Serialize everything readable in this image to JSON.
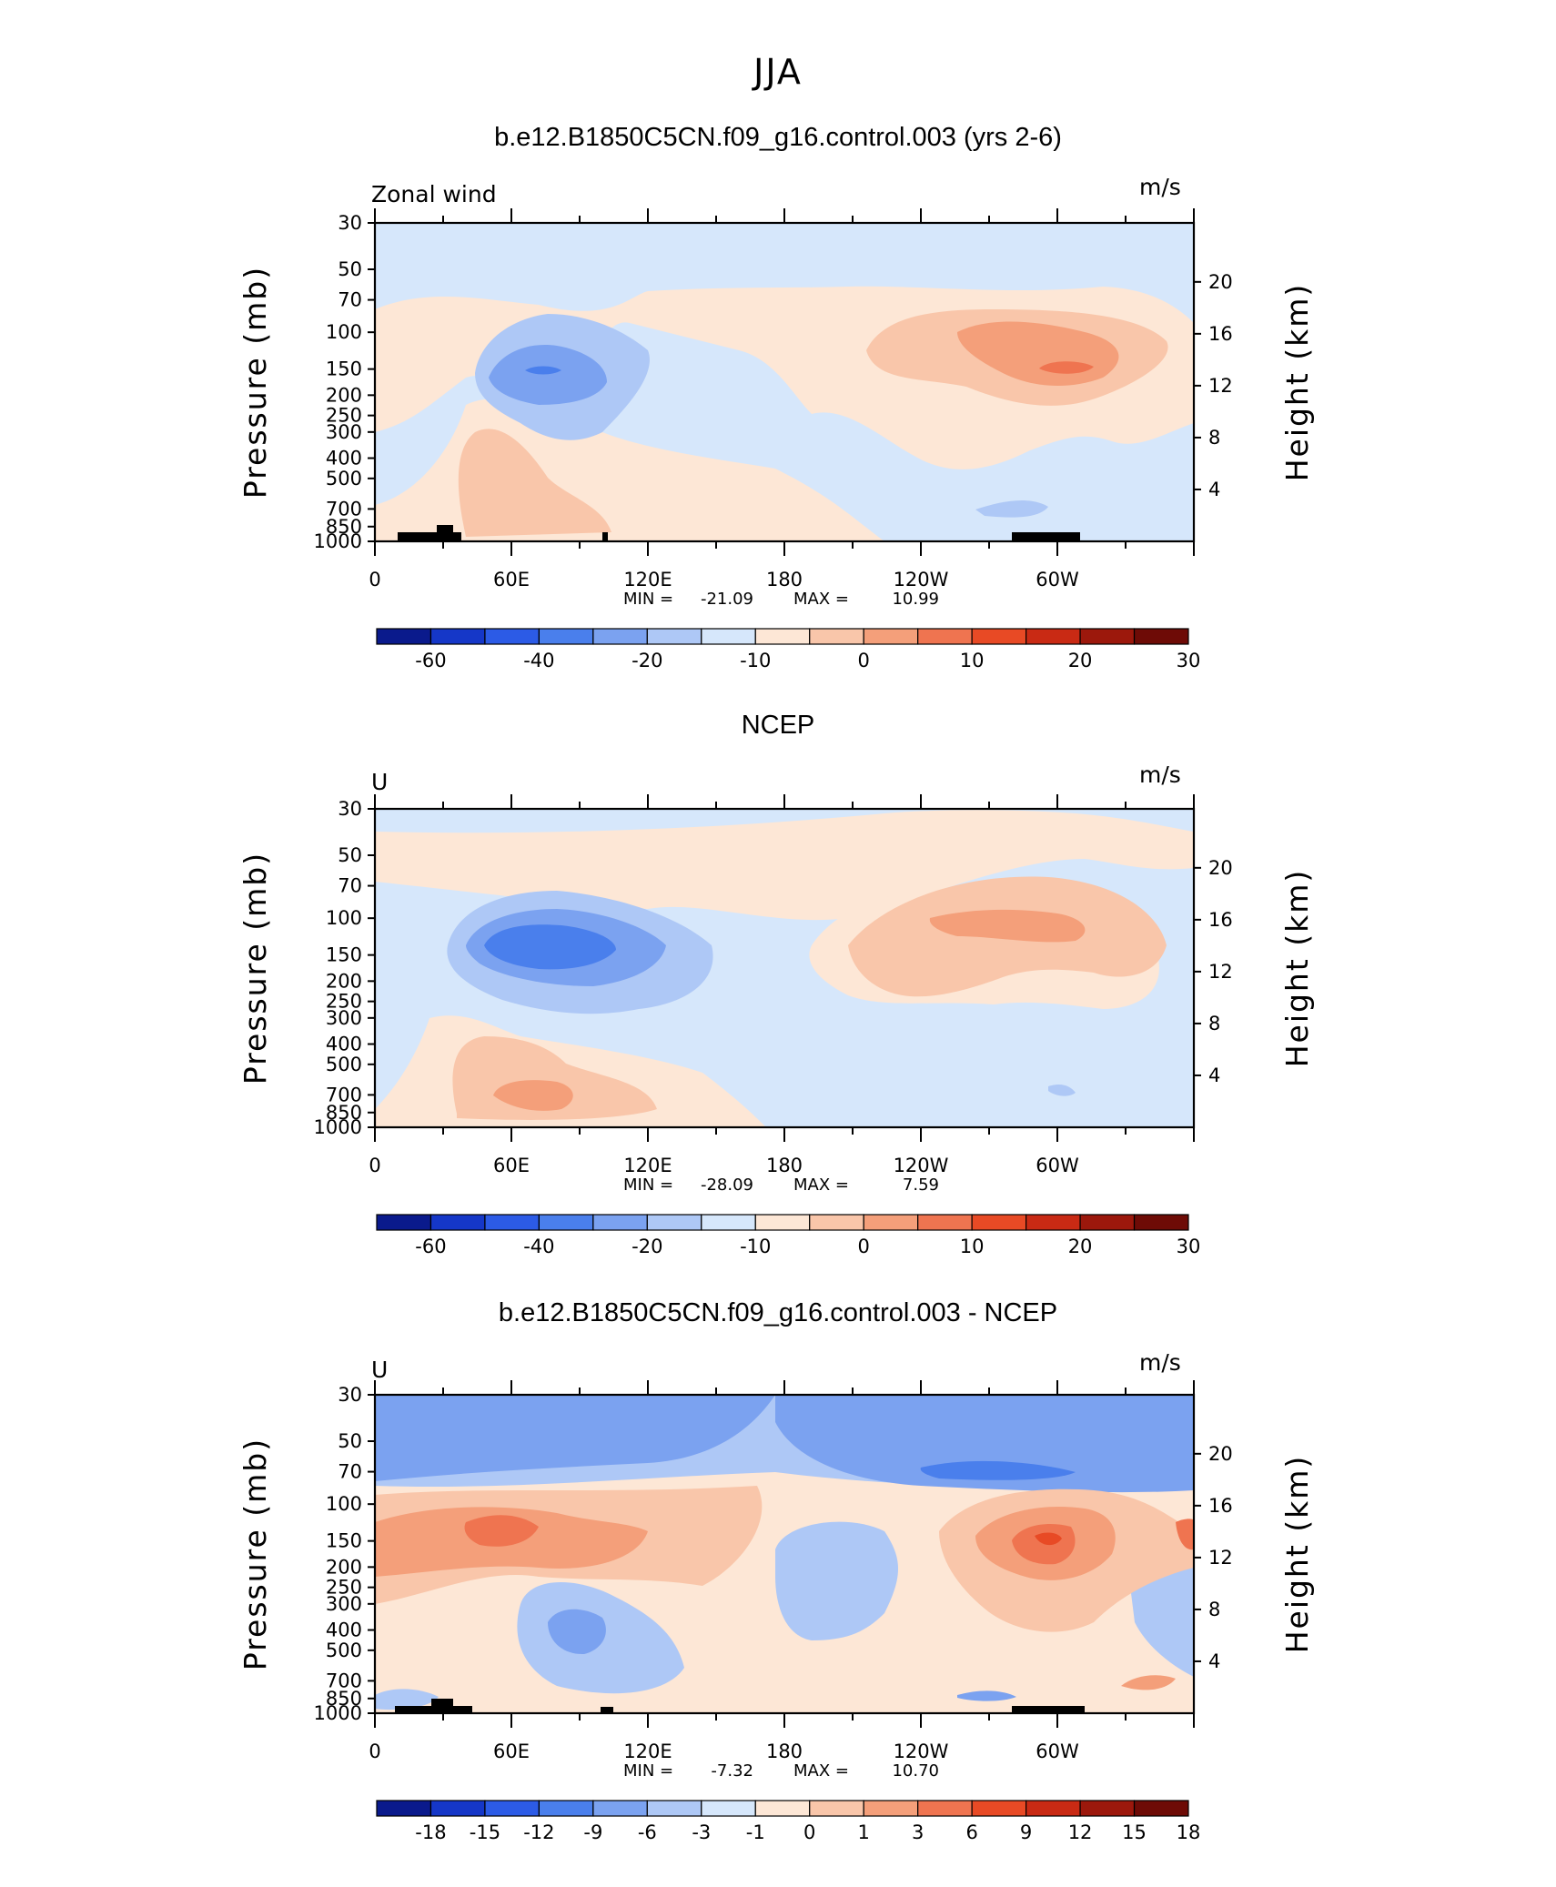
{
  "figure_title": "JJA",
  "chart_data": [
    {
      "type": "heatmap",
      "title": "b.e12.B1850C5CN.f09_g16.control.003 (yrs 2-6)",
      "left_label": "Zonal wind",
      "units": "m/s",
      "ylabel": "Pressure (mb)",
      "ylabel_right": "Height (km)",
      "pressure_ticks": [
        "30",
        "50",
        "70",
        "100",
        "150",
        "200",
        "250",
        "300",
        "400",
        "500",
        "700",
        "850",
        "1000"
      ],
      "height_ticks": [
        "20",
        "16",
        "12",
        "8",
        "4"
      ],
      "lon_ticks": [
        "0",
        "60E",
        "120E",
        "180",
        "120W",
        "60W"
      ],
      "min_label": "MIN =",
      "min_value": "-21.09",
      "max_label": "MAX =",
      "max_value": "10.99",
      "colorbar_labels": [
        "-60",
        "-40",
        "-20",
        "-10",
        "0",
        "10",
        "20",
        "30"
      ],
      "colorbar_colors": [
        "#0a1a8c",
        "#1537c8",
        "#2c5be6",
        "#4a7fec",
        "#7ba2f0",
        "#aec8f6",
        "#d6e7fb",
        "#fde7d6",
        "#f9c6aa",
        "#f49f7a",
        "#ef7450",
        "#e84a25",
        "#c92a14",
        "#9c180c",
        "#6e0b06"
      ],
      "field": [
        {
          "name": "background",
          "color": "#d6e7fb"
        },
        {
          "name": "upper-positive",
          "color": "#fde7d6"
        },
        {
          "name": "jet-west",
          "color": "#f9c6aa"
        },
        {
          "name": "jet-west-core",
          "color": "#f49f7a"
        },
        {
          "name": "jet-west-max",
          "color": "#ef7450"
        },
        {
          "name": "easterly-main",
          "color": "#aec8f6"
        },
        {
          "name": "easterly-core",
          "color": "#7ba2f0"
        },
        {
          "name": "easterly-max",
          "color": "#4a7fec"
        },
        {
          "name": "lower-positive",
          "color": "#f9c6aa"
        }
      ]
    },
    {
      "type": "heatmap",
      "title": "NCEP",
      "left_label": "U",
      "units": "m/s",
      "ylabel": "Pressure (mb)",
      "ylabel_right": "Height (km)",
      "pressure_ticks": [
        "30",
        "50",
        "70",
        "100",
        "150",
        "200",
        "250",
        "300",
        "400",
        "500",
        "700",
        "850",
        "1000"
      ],
      "height_ticks": [
        "20",
        "16",
        "12",
        "8",
        "4"
      ],
      "lon_ticks": [
        "0",
        "60E",
        "120E",
        "180",
        "120W",
        "60W"
      ],
      "min_label": "MIN =",
      "min_value": "-28.09",
      "max_label": "MAX =",
      "max_value": "7.59",
      "colorbar_labels": [
        "-60",
        "-40",
        "-20",
        "-10",
        "0",
        "10",
        "20",
        "30"
      ],
      "colorbar_colors": [
        "#0a1a8c",
        "#1537c8",
        "#2c5be6",
        "#4a7fec",
        "#7ba2f0",
        "#aec8f6",
        "#d6e7fb",
        "#fde7d6",
        "#f9c6aa",
        "#f49f7a",
        "#ef7450",
        "#e84a25",
        "#c92a14",
        "#9c180c",
        "#6e0b06"
      ]
    },
    {
      "type": "heatmap",
      "title": "b.e12.B1850C5CN.f09_g16.control.003 - NCEP",
      "left_label": "U",
      "units": "m/s",
      "ylabel": "Pressure (mb)",
      "ylabel_right": "Height (km)",
      "pressure_ticks": [
        "30",
        "50",
        "70",
        "100",
        "150",
        "200",
        "250",
        "300",
        "400",
        "500",
        "700",
        "850",
        "1000"
      ],
      "height_ticks": [
        "20",
        "16",
        "12",
        "8",
        "4"
      ],
      "lon_ticks": [
        "0",
        "60E",
        "120E",
        "180",
        "120W",
        "60W"
      ],
      "min_label": "MIN =",
      "min_value": "-7.32",
      "max_label": "MAX =",
      "max_value": "10.70",
      "colorbar_labels": [
        "-18",
        "-15",
        "-12",
        "-9",
        "-6",
        "-3",
        "-1",
        "0",
        "1",
        "3",
        "6",
        "9",
        "12",
        "15",
        "18"
      ],
      "colorbar_colors": [
        "#0a1a8c",
        "#1537c8",
        "#2c5be6",
        "#4a7fec",
        "#7ba2f0",
        "#aec8f6",
        "#d6e7fb",
        "#fde7d6",
        "#f9c6aa",
        "#f49f7a",
        "#ef7450",
        "#e84a25",
        "#c92a14",
        "#9c180c",
        "#6e0b06"
      ]
    }
  ]
}
